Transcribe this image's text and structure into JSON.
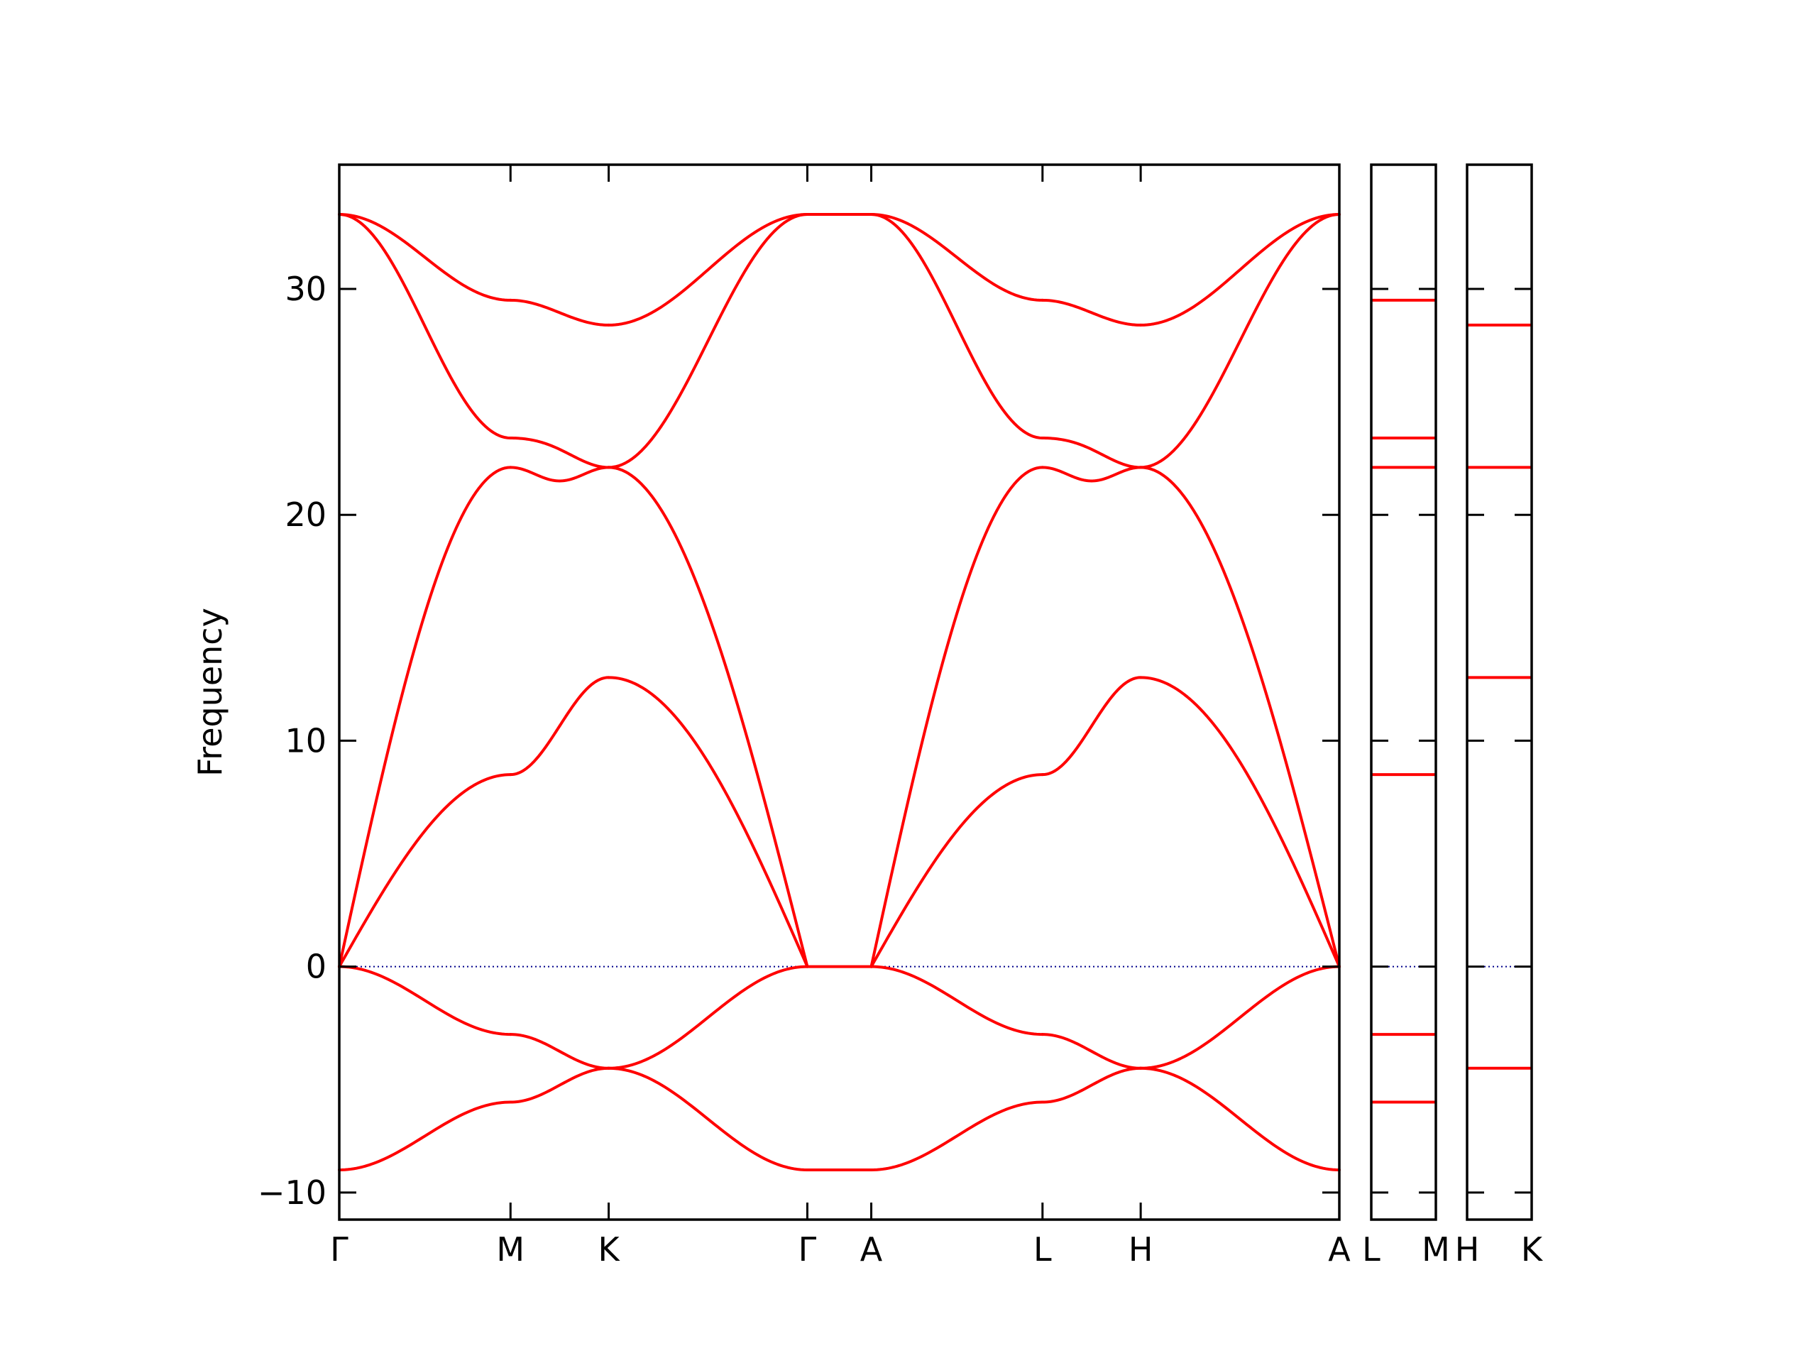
{
  "chart_data": {
    "type": "line",
    "ylabel": "Frequency",
    "ylim": [
      -11.2,
      35.5
    ],
    "yticks": [
      -10,
      0,
      10,
      20,
      30
    ],
    "ytick_labels": [
      "−10",
      "0",
      "10",
      "20",
      "30"
    ],
    "grid": false,
    "colors": {
      "bands": "#ff0000",
      "zero_line": "#00008b"
    },
    "main_panel": {
      "x_range": [
        0,
        4.38
      ],
      "high_symmetry_points": [
        {
          "label": "Γ",
          "x": 0
        },
        {
          "label": "M",
          "x": 0.75
        },
        {
          "label": "K",
          "x": 1.18
        },
        {
          "label": "Γ",
          "x": 2.05
        },
        {
          "label": "A",
          "x": 2.33
        },
        {
          "label": "L",
          "x": 3.08
        },
        {
          "label": "H",
          "x": 3.51
        },
        {
          "label": "A",
          "x": 4.38
        }
      ],
      "segments": [
        {
          "name": "Γ-M",
          "x": [
            0,
            0.75
          ],
          "bands": [
            [
              0,
              22.1
            ],
            [
              0,
              8.5
            ],
            [
              33.3,
              23.4
            ],
            [
              33.3,
              29.5
            ],
            [
              0,
              -3.0
            ],
            [
              -9.0,
              -6.0
            ]
          ]
        },
        {
          "name": "M-K",
          "x": [
            0.75,
            1.18
          ],
          "bands": [
            [
              22.1,
              22.1
            ],
            [
              8.5,
              12.8
            ],
            [
              23.4,
              22.1
            ],
            [
              29.5,
              28.4
            ],
            [
              -3.0,
              -4.5
            ],
            [
              -6.0,
              -4.5
            ]
          ],
          "mid": [
            21.5,
            null,
            22.9,
            null,
            null,
            null
          ]
        },
        {
          "name": "K-Γ",
          "x": [
            1.18,
            2.05
          ],
          "bands": [
            [
              22.1,
              0
            ],
            [
              12.8,
              0
            ],
            [
              22.1,
              33.3
            ],
            [
              28.4,
              33.3
            ],
            [
              -4.5,
              -9.0
            ],
            [
              -4.5,
              0
            ]
          ]
        },
        {
          "name": "Γ-A",
          "x": [
            2.05,
            2.33
          ],
          "bands": [
            [
              0,
              0
            ],
            [
              33.3,
              33.3
            ],
            [
              -9.0,
              -9.0
            ]
          ]
        },
        {
          "name": "A-L",
          "x": [
            2.33,
            3.08
          ],
          "bands": [
            [
              0,
              22.1
            ],
            [
              0,
              8.5
            ],
            [
              33.3,
              23.4
            ],
            [
              33.3,
              29.5
            ],
            [
              0,
              -3.0
            ],
            [
              -9.0,
              -6.0
            ]
          ]
        },
        {
          "name": "L-H",
          "x": [
            3.08,
            3.51
          ],
          "bands": [
            [
              22.1,
              22.1
            ],
            [
              8.5,
              12.8
            ],
            [
              23.4,
              22.1
            ],
            [
              29.5,
              28.4
            ],
            [
              -3.0,
              -4.5
            ],
            [
              -6.0,
              -4.5
            ]
          ],
          "mid": [
            21.5,
            null,
            22.9,
            null,
            null,
            null
          ]
        },
        {
          "name": "H-A",
          "x": [
            3.51,
            4.38
          ],
          "bands": [
            [
              22.1,
              0
            ],
            [
              12.8,
              0
            ],
            [
              22.1,
              33.3
            ],
            [
              28.4,
              33.3
            ],
            [
              -4.5,
              -9.0
            ],
            [
              -4.5,
              0
            ]
          ]
        }
      ]
    },
    "side_panels": [
      {
        "name": "L-M",
        "labels": [
          "L",
          "M"
        ],
        "levels": [
          29.5,
          23.4,
          22.1,
          8.5,
          -3.0,
          -6.0
        ]
      },
      {
        "name": "H-K",
        "labels": [
          "H",
          "K"
        ],
        "levels": [
          28.4,
          22.1,
          12.8,
          -4.5
        ]
      }
    ]
  }
}
